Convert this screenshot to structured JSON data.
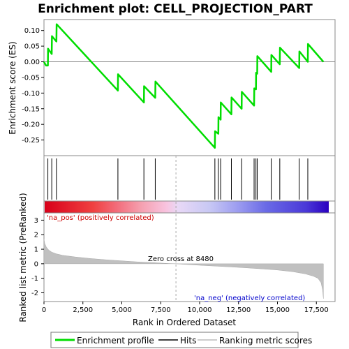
{
  "chart_data": {
    "type": "line",
    "title": "Enrichment plot: CELL_PROJECTION_PART",
    "top_panel": {
      "ylabel": "Enrichment score (ES)",
      "ylim": [
        -0.3,
        0.135
      ],
      "yticks": [
        0.1,
        0.05,
        0.0,
        -0.05,
        -0.1,
        -0.15,
        -0.2,
        -0.25
      ],
      "ytick_labels": [
        "0.10",
        "0.05",
        "0.00",
        "-0.05",
        "-0.10",
        "-0.15",
        "-0.20",
        "-0.25"
      ],
      "series": [
        {
          "name": "Enrichment profile",
          "color": "#00dd00",
          "x": [
            0,
            130,
            250,
            260,
            500,
            510,
            800,
            810,
            4750,
            4760,
            6420,
            6430,
            7150,
            7160,
            10980,
            10990,
            11200,
            11210,
            11350,
            11360,
            12040,
            12050,
            12700,
            12710,
            13500,
            13510,
            13620,
            13630,
            13700,
            13710,
            14600,
            14610,
            15150,
            15160,
            16400,
            16410,
            16950,
            16960,
            17950
          ],
          "y": [
            0.0,
            -0.012,
            -0.012,
            0.042,
            0.025,
            0.082,
            0.065,
            0.12,
            -0.092,
            -0.04,
            -0.13,
            -0.078,
            -0.115,
            -0.063,
            -0.275,
            -0.222,
            -0.23,
            -0.177,
            -0.185,
            -0.13,
            -0.168,
            -0.114,
            -0.15,
            -0.096,
            -0.14,
            -0.085,
            -0.088,
            -0.035,
            -0.038,
            0.018,
            -0.032,
            0.022,
            -0.008,
            0.045,
            -0.02,
            0.033,
            0.0,
            0.057,
            0.0
          ]
        }
      ]
    },
    "hits_panel": {
      "series_name": "Hits",
      "positions": [
        250,
        500,
        800,
        4750,
        6420,
        7150,
        10980,
        11200,
        11350,
        12040,
        12700,
        13500,
        13620,
        13700,
        14600,
        15150,
        16400,
        16950
      ]
    },
    "rank_panel": {
      "series_name": "Ranking metric scores",
      "ylabel": "Ranked list metric (PreRanked)",
      "xlabel": "Rank in Ordered Dataset",
      "xlim": [
        0,
        18700
      ],
      "ylim": [
        -2.6,
        3.5
      ],
      "xticks": [
        0,
        2500,
        5000,
        7500,
        10000,
        12500,
        15000,
        17500
      ],
      "xtick_labels": [
        "0",
        "2,500",
        "5,000",
        "7,500",
        "10,000",
        "12,500",
        "15,000",
        "17,500"
      ],
      "yticks": [
        3,
        2,
        1,
        0,
        -1,
        -2
      ],
      "ytick_labels": [
        "3",
        "2",
        "1",
        "0",
        "-1",
        "-2"
      ],
      "n_genes": 17950,
      "zero_cross": 8480,
      "profile": {
        "rank": [
          0,
          50,
          150,
          300,
          500,
          800,
          1200,
          2000,
          3000,
          4000,
          5000,
          6000,
          7000,
          8000,
          8480,
          9000,
          10000,
          11000,
          12000,
          13000,
          14000,
          15000,
          16000,
          16800,
          17300,
          17600,
          17800,
          17900,
          17950
        ],
        "score": [
          1.7,
          1.4,
          1.15,
          0.95,
          0.8,
          0.68,
          0.58,
          0.47,
          0.36,
          0.27,
          0.2,
          0.13,
          0.08,
          0.02,
          0.0,
          -0.04,
          -0.1,
          -0.16,
          -0.22,
          -0.28,
          -0.35,
          -0.43,
          -0.55,
          -0.7,
          -0.85,
          -1.0,
          -1.3,
          -1.8,
          -2.4
        ]
      }
    },
    "annotations": {
      "pos_label": "'na_pos' (positively correlated)",
      "neg_label": "'na_neg' (negatively correlated)",
      "zero_cross_label": "Zero cross at 8480"
    },
    "legend": {
      "placement": "bottom",
      "items": [
        "Enrichment profile",
        "Hits",
        "Ranking metric scores"
      ]
    },
    "colors": {
      "enrichment": "#00dd00",
      "pos_label": "#cc0000",
      "neg_label": "#0000cc",
      "bar_positive": "#dd0000",
      "bar_negative": "#2200cc",
      "rank_fill": "#c0c0c0"
    }
  }
}
